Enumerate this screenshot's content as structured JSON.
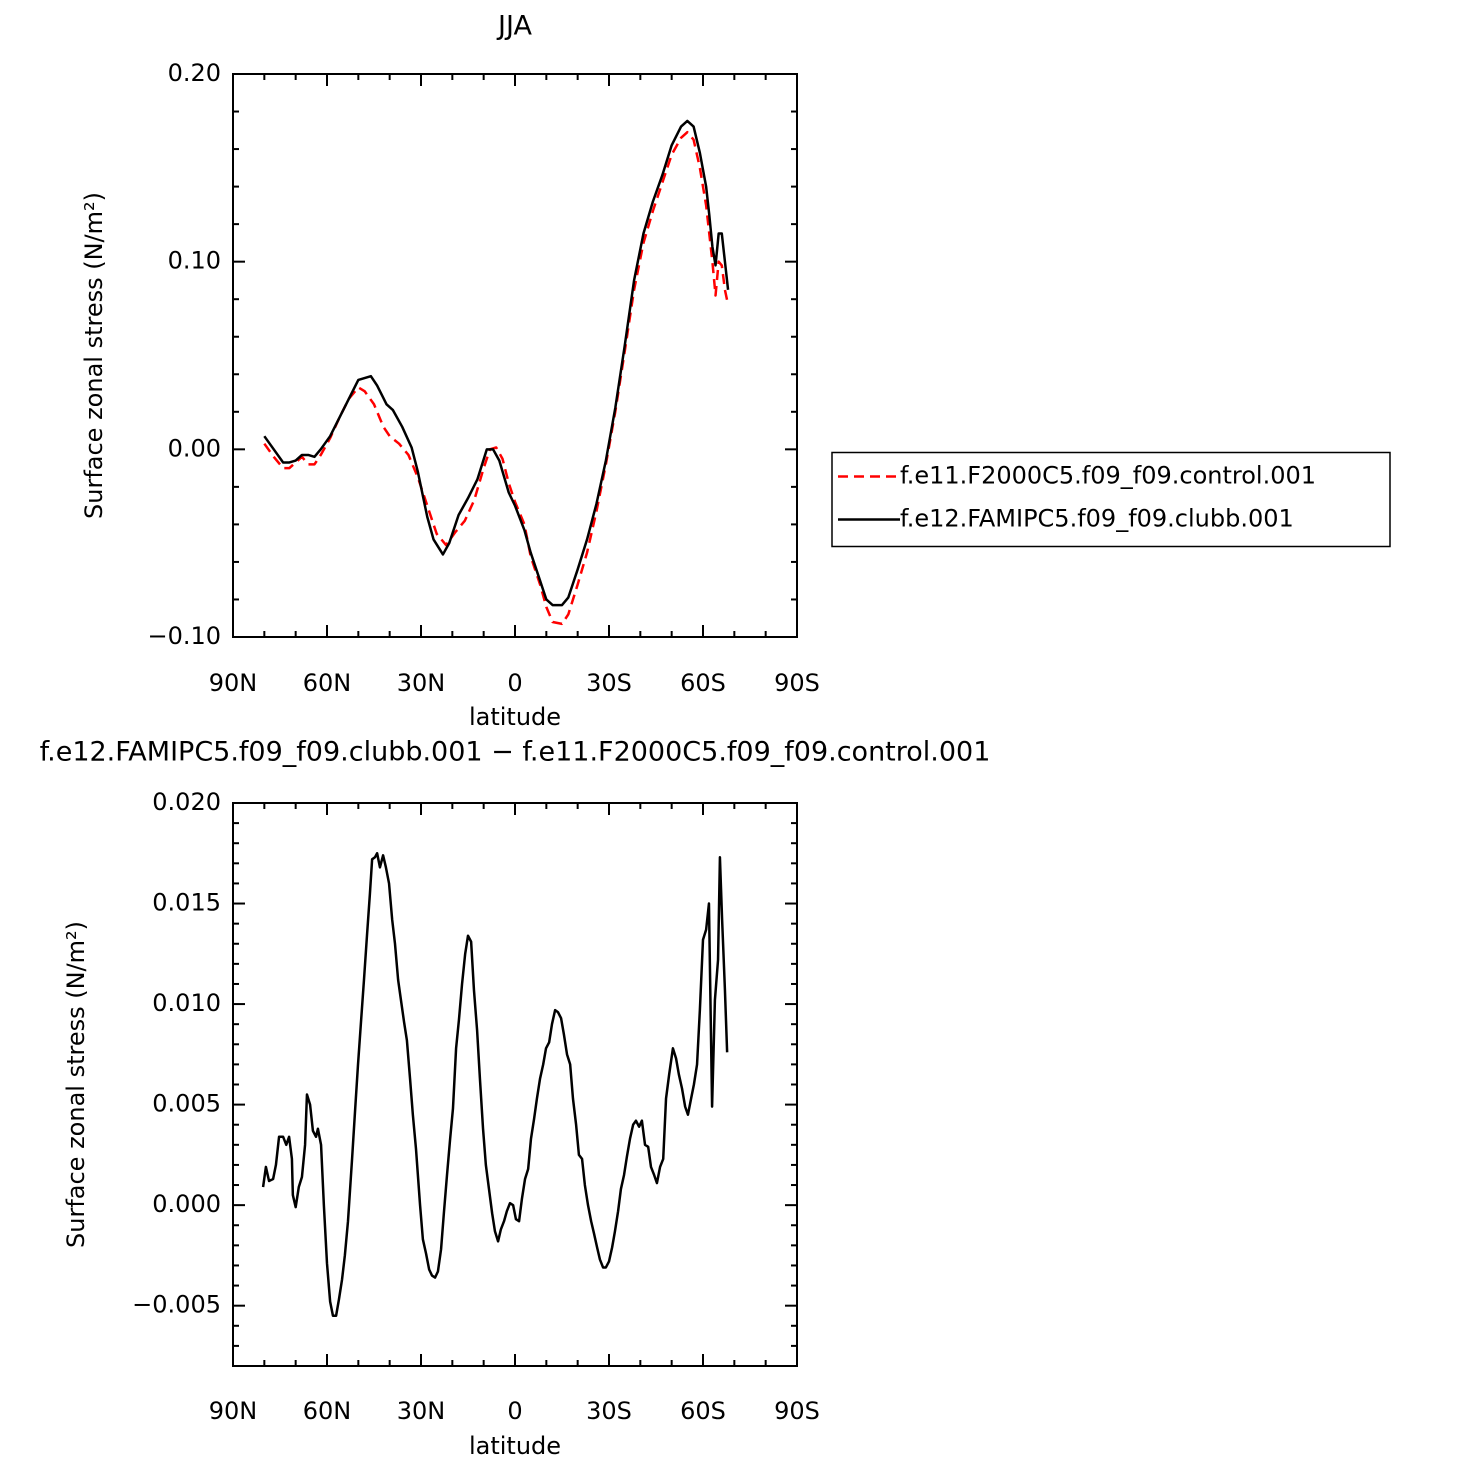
{
  "chart_data": [
    {
      "type": "line",
      "title": "JJA",
      "xlabel": "latitude",
      "ylabel": "Surface zonal stress (N/m²)",
      "xlim": [
        90,
        -90
      ],
      "ylim": [
        -0.1,
        0.2
      ],
      "xticks": [
        {
          "value": 90,
          "label": "90N"
        },
        {
          "value": 60,
          "label": "60N"
        },
        {
          "value": 30,
          "label": "30N"
        },
        0,
        {
          "value": -30,
          "label": "30S"
        },
        {
          "value": -60,
          "label": "60S"
        },
        {
          "value": -90,
          "label": "90S"
        }
      ],
      "xminorticks": [
        80,
        70,
        50,
        40,
        20,
        10,
        -10,
        -20,
        -40,
        -50,
        -70,
        -80
      ],
      "yticks": [
        {
          "value": -0.1,
          "label": "−0.10"
        },
        {
          "value": 0,
          "label": "0.00"
        },
        {
          "value": 0.1,
          "label": "0.10"
        },
        {
          "value": 0.2,
          "label": "0.20"
        }
      ],
      "yminorticks": [
        -0.08,
        -0.06,
        -0.04,
        -0.02,
        0.02,
        0.04,
        0.06,
        0.08,
        0.12,
        0.14,
        0.16,
        0.18
      ],
      "legend": "right",
      "series": [
        {
          "name": "f.e11.F2000C5.f09_f09.control.001",
          "color": "#ff0000",
          "dash": true,
          "x": [
            80,
            77,
            74,
            72,
            70,
            68,
            66,
            64,
            62,
            59,
            56,
            53,
            50,
            48,
            45,
            42,
            40,
            37,
            34,
            31,
            28,
            25,
            22,
            19,
            16,
            13,
            10,
            8,
            6,
            4,
            2,
            0,
            -3,
            -5,
            -8,
            -10,
            -12,
            -15,
            -17,
            -20,
            -23,
            -26,
            -29,
            -32,
            -35,
            -38,
            -41,
            -44,
            -47,
            -50,
            -53,
            -55,
            -57,
            -59,
            -61,
            -63,
            -64,
            -65,
            -66,
            -67,
            -68
          ],
          "values": [
            0.003,
            -0.004,
            -0.01,
            -0.01,
            -0.007,
            -0.004,
            -0.008,
            -0.008,
            -0.003,
            0.006,
            0.017,
            0.027,
            0.033,
            0.031,
            0.024,
            0.012,
            0.007,
            0.003,
            -0.003,
            -0.015,
            -0.03,
            -0.045,
            -0.051,
            -0.044,
            -0.038,
            -0.027,
            -0.01,
            0.0,
            0.001,
            -0.005,
            -0.018,
            -0.028,
            -0.04,
            -0.057,
            -0.072,
            -0.084,
            -0.092,
            -0.093,
            -0.088,
            -0.072,
            -0.055,
            -0.033,
            -0.008,
            0.02,
            0.052,
            0.085,
            0.11,
            0.127,
            0.142,
            0.157,
            0.166,
            0.169,
            0.165,
            0.15,
            0.13,
            0.1,
            0.082,
            0.1,
            0.098,
            0.085,
            0.077
          ]
        },
        {
          "name": "f.e12.FAMIPC5.f09_f09.clubb.001",
          "color": "#000000",
          "dash": false,
          "x": [
            80,
            77,
            74,
            72,
            70,
            68,
            66,
            64,
            62,
            59,
            56,
            53,
            50,
            48,
            46,
            44,
            41,
            39,
            36,
            33,
            31,
            28,
            26,
            23,
            21,
            18,
            15,
            12,
            9,
            7,
            5,
            2,
            0,
            -3,
            -5,
            -8,
            -10,
            -12,
            -15,
            -17,
            -20,
            -23,
            -26,
            -29,
            -32,
            -35,
            -38,
            -41,
            -44,
            -47,
            -50,
            -53,
            -55,
            -57,
            -59,
            -61,
            -62,
            -63,
            -64,
            -65,
            -66,
            -67,
            -68
          ],
          "values": [
            0.007,
            0.0,
            -0.007,
            -0.007,
            -0.006,
            -0.003,
            -0.003,
            -0.004,
            0.0,
            0.007,
            0.017,
            0.027,
            0.037,
            0.038,
            0.039,
            0.034,
            0.024,
            0.021,
            0.012,
            0.001,
            -0.012,
            -0.036,
            -0.048,
            -0.056,
            -0.05,
            -0.035,
            -0.026,
            -0.016,
            0.0,
            0.0,
            -0.006,
            -0.023,
            -0.03,
            -0.043,
            -0.055,
            -0.07,
            -0.08,
            -0.083,
            -0.083,
            -0.079,
            -0.064,
            -0.048,
            -0.029,
            -0.006,
            0.022,
            0.055,
            0.09,
            0.115,
            0.132,
            0.146,
            0.162,
            0.172,
            0.175,
            0.172,
            0.158,
            0.14,
            0.125,
            0.108,
            0.098,
            0.115,
            0.115,
            0.1,
            0.085
          ]
        }
      ]
    },
    {
      "type": "line",
      "title": "f.e12.FAMIPC5.f09_f09.clubb.001 − f.e11.F2000C5.f09_f09.control.001",
      "xlabel": "latitude",
      "ylabel": "Surface zonal stress (N/m²)",
      "xlim": [
        90,
        -90
      ],
      "ylim": [
        -0.008,
        0.02
      ],
      "xticks": [
        {
          "value": 90,
          "label": "90N"
        },
        {
          "value": 60,
          "label": "60N"
        },
        {
          "value": 30,
          "label": "30N"
        },
        0,
        {
          "value": -30,
          "label": "30S"
        },
        {
          "value": -60,
          "label": "60S"
        },
        {
          "value": -90,
          "label": "90S"
        }
      ],
      "xminorticks": [
        80,
        70,
        50,
        40,
        20,
        10,
        -10,
        -20,
        -40,
        -50,
        -70,
        -80
      ],
      "yticks": [
        {
          "value": -0.005,
          "label": "−0.005"
        },
        {
          "value": 0,
          "label": "0.000"
        },
        0.005,
        {
          "value": 0.01,
          "label": "0.010"
        },
        0.015,
        {
          "value": 0.02,
          "label": "0.020"
        }
      ],
      "yminorticks": [
        -0.007,
        -0.006,
        -0.004,
        -0.003,
        -0.002,
        -0.001,
        0.001,
        0.002,
        0.003,
        0.004,
        0.006,
        0.007,
        0.008,
        0.009,
        0.011,
        0.012,
        0.013,
        0.014,
        0.016,
        0.017,
        0.018,
        0.019
      ],
      "series": [
        {
          "color": "#000000",
          "dash": false,
          "x": [
            80.4,
            79.5,
            78.5,
            77.2,
            76.3,
            75.3,
            74,
            73,
            72.1,
            71.2,
            70.9,
            70,
            69,
            68,
            67,
            66.4,
            65.4,
            64.5,
            63.5,
            62.9,
            61.9,
            61,
            60,
            59,
            58.1,
            57.1,
            56.2,
            55.2,
            54.3,
            53.3,
            52,
            51,
            50.1,
            49.2,
            48.2,
            47.2,
            46.3,
            45.6,
            44.7,
            44,
            43.1,
            42.1,
            41.2,
            40.2,
            39.2,
            38.3,
            37.3,
            36.4,
            35.4,
            34.5,
            33.5,
            32.6,
            31.6,
            30.3,
            29.4,
            28.4,
            27.4,
            26.5,
            25.5,
            24.6,
            23.6,
            22.7,
            21.7,
            20.7,
            19.8,
            18.8,
            17.9,
            16.9,
            15.9,
            15,
            14,
            13.1,
            12.1,
            11.2,
            10.2,
            9.3,
            8.3,
            7.3,
            6.4,
            5.4,
            4.5,
            3.5,
            2.6,
            1.6,
            0.6,
            -0.3,
            -1.3,
            -2.2,
            -3.2,
            -4.2,
            -5.1,
            -6.1,
            -7,
            -8,
            -9,
            -9.9,
            -10.9,
            -11.8,
            -12.8,
            -13.7,
            -14.7,
            -15.6,
            -16.6,
            -17.6,
            -18.5,
            -19.5,
            -20.4,
            -21.4,
            -22.3,
            -23.3,
            -24.3,
            -25.2,
            -26.2,
            -27.1,
            -28.1,
            -29,
            -30,
            -31,
            -31.9,
            -32.9,
            -33.8,
            -34.8,
            -35.7,
            -36.7,
            -37.7,
            -38.6,
            -39.6,
            -40.5,
            -41.5,
            -42.5,
            -43.4,
            -44.4,
            -45.3,
            -46.3,
            -47.3,
            -48.2,
            -49.2,
            -50.4,
            -51.4,
            -52.3,
            -53.3,
            -54.3,
            -55.2,
            -56.2,
            -57.1,
            -58.1,
            -59,
            -60,
            -61,
            -61.9,
            -62.9,
            -63.8,
            -64.8,
            -65.4,
            -66.1,
            -67,
            -67.7
          ],
          "values": [
            0.0009,
            0.0019,
            0.0012,
            0.0013,
            0.002,
            0.0034,
            0.0034,
            0.003,
            0.0034,
            0.0023,
            0.0005,
            -0.0001,
            0.0009,
            0.0014,
            0.003,
            0.0055,
            0.005,
            0.0037,
            0.0034,
            0.0038,
            0.003,
            0.0,
            -0.0029,
            -0.0048,
            -0.0055,
            -0.0055,
            -0.0047,
            -0.0037,
            -0.0025,
            -0.0008,
            0.0023,
            0.0048,
            0.007,
            0.009,
            0.0112,
            0.0135,
            0.0155,
            0.0172,
            0.0173,
            0.0175,
            0.0168,
            0.0174,
            0.0168,
            0.016,
            0.0142,
            0.013,
            0.0112,
            0.0102,
            0.0091,
            0.0082,
            0.0063,
            0.0045,
            0.0028,
            0.0,
            -0.0017,
            -0.0024,
            -0.0032,
            -0.0035,
            -0.0036,
            -0.0033,
            -0.0022,
            -0.0004,
            0.0015,
            0.0033,
            0.0048,
            0.0078,
            0.0092,
            0.011,
            0.0125,
            0.0134,
            0.0131,
            0.0107,
            0.0087,
            0.0063,
            0.0038,
            0.002,
            0.0008,
            -0.0004,
            -0.0013,
            -0.0018,
            -0.0012,
            -0.0008,
            -0.0003,
            0.0001,
            0.0,
            -0.0007,
            -0.0008,
            0.0003,
            0.0013,
            0.0018,
            0.0033,
            0.0043,
            0.0053,
            0.0063,
            0.007,
            0.0078,
            0.0081,
            0.009,
            0.0097,
            0.0096,
            0.0093,
            0.0085,
            0.0075,
            0.007,
            0.0053,
            0.004,
            0.0025,
            0.0023,
            0.001,
            0.0,
            -0.0008,
            -0.0014,
            -0.0021,
            -0.0027,
            -0.0031,
            -0.0031,
            -0.0028,
            -0.0021,
            -0.0013,
            -0.0003,
            0.0008,
            0.0015,
            0.0024,
            0.0033,
            0.004,
            0.0042,
            0.0039,
            0.0042,
            0.003,
            0.0029,
            0.0019,
            0.0015,
            0.0011,
            0.0019,
            0.0023,
            0.0053,
            0.0065,
            0.0078,
            0.0073,
            0.0065,
            0.0058,
            0.0049,
            0.0045,
            0.0053,
            0.006,
            0.007,
            0.0097,
            0.0132,
            0.0137,
            0.015,
            0.0049,
            0.0102,
            0.0122,
            0.0173,
            0.0142,
            0.0107,
            0.0076
          ]
        }
      ]
    }
  ]
}
